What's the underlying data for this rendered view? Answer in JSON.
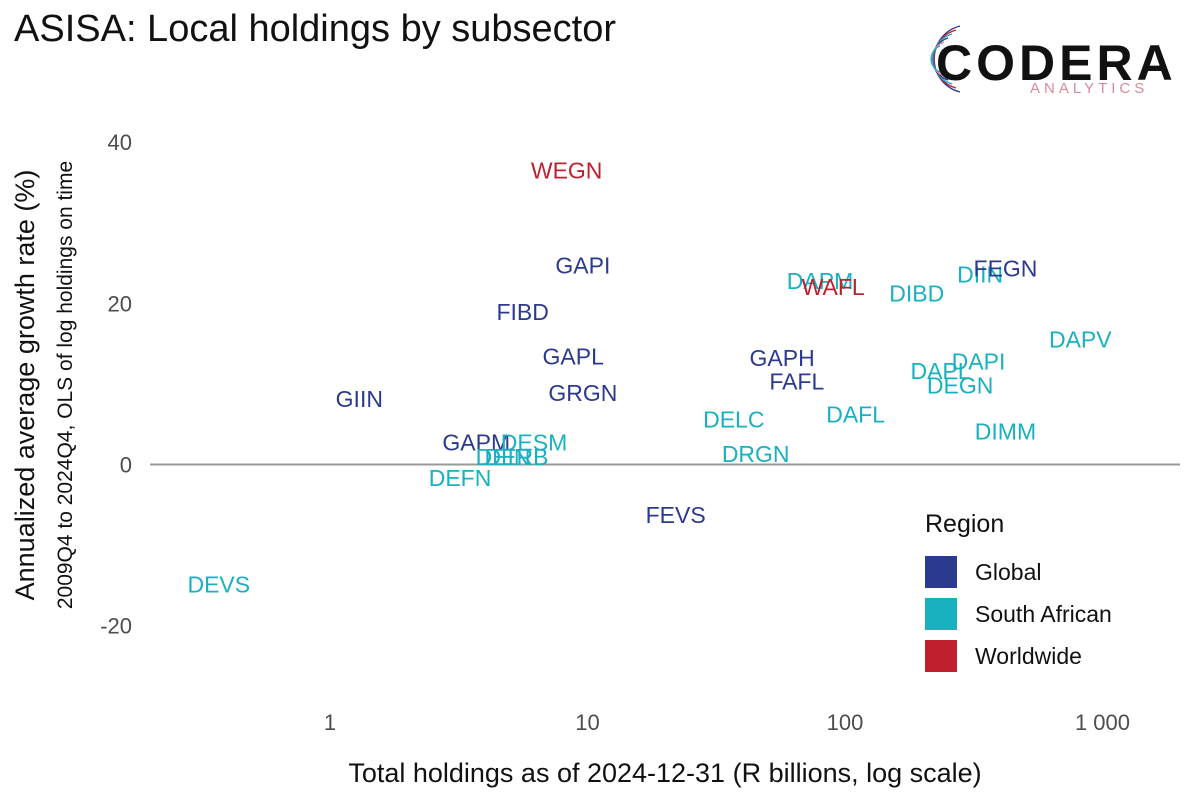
{
  "title": "ASISA: Local holdings by subsector",
  "logo": {
    "name": "CODERA",
    "sub": "ANALYTICS"
  },
  "colors": {
    "Global": "#2b3a8f",
    "South African": "#19b0c0",
    "Worldwide": "#c0202e",
    "zero_line": "#999999",
    "tick_text": "#4d4d4d"
  },
  "chart_data": {
    "type": "scatter",
    "title": "ASISA: Local holdings by subsector",
    "xlabel": "Total holdings as of 2024-12-31  (R billions, log scale)",
    "ylabel": "Annualized average growth rate (%)",
    "ylabel2": "2009Q4 to 2024Q4, OLS of log holdings on time",
    "xscale": "log",
    "xlim": [
      0.2,
      2000
    ],
    "ylim": [
      -28,
      44
    ],
    "x_ticks": [
      1,
      10,
      100,
      1000
    ],
    "x_tick_labels": [
      "1",
      "10",
      "100",
      "1 000"
    ],
    "y_ticks": [
      -20,
      0,
      20,
      40
    ],
    "y_tick_labels": [
      "-20",
      "0",
      "20",
      "40"
    ],
    "zero_line": true,
    "grid": false,
    "legend": {
      "title": "Region",
      "position": "right",
      "entries": [
        "Global",
        "South African",
        "Worldwide"
      ]
    },
    "points": [
      {
        "label": "WEGN",
        "x": 8.3,
        "y": 36.5,
        "region": "Worldwide"
      },
      {
        "label": "GAPI",
        "x": 9.6,
        "y": 24.7,
        "region": "Global"
      },
      {
        "label": "FIBD",
        "x": 5.6,
        "y": 18.9,
        "region": "Global"
      },
      {
        "label": "GAPL",
        "x": 8.8,
        "y": 13.4,
        "region": "Global"
      },
      {
        "label": "GRGN",
        "x": 9.6,
        "y": 8.9,
        "region": "Global"
      },
      {
        "label": "GIIN",
        "x": 1.3,
        "y": 8.1,
        "region": "Global"
      },
      {
        "label": "GAPM",
        "x": 3.7,
        "y": 2.7,
        "region": "Global"
      },
      {
        "label": "DESM",
        "x": 6.2,
        "y": 2.7,
        "region": "South African"
      },
      {
        "label": "DEIN",
        "x": 4.7,
        "y": 0.9,
        "region": "South African"
      },
      {
        "label": "DERB",
        "x": 5.3,
        "y": 0.9,
        "region": "South African"
      },
      {
        "label": "DEFN",
        "x": 3.2,
        "y": -1.7,
        "region": "South African"
      },
      {
        "label": "DEVS",
        "x": 0.37,
        "y": -14.9,
        "region": "South African"
      },
      {
        "label": "FEVS",
        "x": 22,
        "y": -6.3,
        "region": "Global"
      },
      {
        "label": "DELC",
        "x": 37,
        "y": 5.6,
        "region": "South African"
      },
      {
        "label": "DRGN",
        "x": 45,
        "y": 1.3,
        "region": "South African"
      },
      {
        "label": "GAPH",
        "x": 57,
        "y": 13.2,
        "region": "Global"
      },
      {
        "label": "FAFL",
        "x": 65,
        "y": 10.3,
        "region": "Global"
      },
      {
        "label": "DAFL",
        "x": 110,
        "y": 6.2,
        "region": "South African"
      },
      {
        "label": "DAPM",
        "x": 80,
        "y": 22.8,
        "region": "South African"
      },
      {
        "label": "WAFL",
        "x": 90,
        "y": 22.0,
        "region": "Worldwide"
      },
      {
        "label": "DIBD",
        "x": 190,
        "y": 21.2,
        "region": "South African"
      },
      {
        "label": "DIIN",
        "x": 335,
        "y": 23.6,
        "region": "South African"
      },
      {
        "label": "FEGN",
        "x": 420,
        "y": 24.3,
        "region": "Global"
      },
      {
        "label": "DAPV",
        "x": 820,
        "y": 15.5,
        "region": "South African"
      },
      {
        "label": "DAPI",
        "x": 330,
        "y": 12.8,
        "region": "South African"
      },
      {
        "label": "DAPL",
        "x": 235,
        "y": 11.6,
        "region": "South African"
      },
      {
        "label": "DEGN",
        "x": 280,
        "y": 9.8,
        "region": "South African"
      },
      {
        "label": "DIMM",
        "x": 420,
        "y": 4.1,
        "region": "South African"
      }
    ]
  }
}
